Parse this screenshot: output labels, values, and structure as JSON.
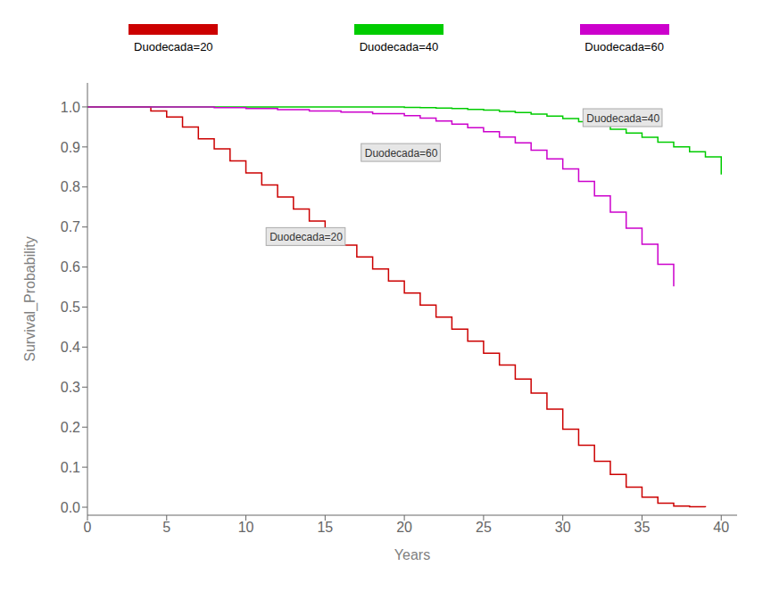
{
  "chart_data": {
    "type": "step",
    "xlabel": "Years",
    "ylabel": "Survival_Probability",
    "xlim": [
      0,
      41
    ],
    "ylim": [
      -0.02,
      1.06
    ],
    "xticks": [
      0,
      5,
      10,
      15,
      20,
      25,
      30,
      35,
      40
    ],
    "yticks": [
      {
        "value": 0.0,
        "label": "0.0"
      },
      0.1,
      0.2,
      0.3,
      0.4,
      0.5,
      0.6,
      0.7,
      0.8,
      0.9,
      {
        "value": 1.0,
        "label": "1.0"
      }
    ],
    "grid": false,
    "legend": "top",
    "series": [
      {
        "name": "Duodecada=20",
        "color": "#cc0000",
        "x": [
          0,
          4,
          5,
          6,
          7,
          8,
          9,
          10,
          11,
          12,
          13,
          14,
          15,
          16,
          17,
          18,
          19,
          20,
          21,
          22,
          23,
          24,
          25,
          26,
          27,
          28,
          29,
          30,
          31,
          32,
          33,
          34,
          35,
          36,
          37,
          38,
          39
        ],
        "values": [
          1.0,
          0.99,
          0.975,
          0.95,
          0.92,
          0.895,
          0.865,
          0.835,
          0.805,
          0.775,
          0.745,
          0.715,
          0.685,
          0.655,
          0.625,
          0.595,
          0.565,
          0.535,
          0.505,
          0.475,
          0.445,
          0.415,
          0.385,
          0.355,
          0.32,
          0.285,
          0.245,
          0.195,
          0.155,
          0.115,
          0.082,
          0.05,
          0.025,
          0.01,
          0.003,
          0.001,
          0.0
        ]
      },
      {
        "name": "Duodecada=40",
        "color": "#00cc00",
        "x": [
          0,
          18,
          20,
          21,
          22,
          23,
          24,
          25,
          26,
          27,
          28,
          29,
          30,
          31,
          32,
          33,
          34,
          35,
          36,
          37,
          38,
          39,
          40
        ],
        "values": [
          1.0,
          1.0,
          0.999,
          0.998,
          0.997,
          0.996,
          0.994,
          0.992,
          0.989,
          0.986,
          0.982,
          0.977,
          0.971,
          0.963,
          0.954,
          0.944,
          0.935,
          0.924,
          0.912,
          0.9,
          0.888,
          0.875,
          0.831
        ]
      },
      {
        "name": "Duodecada=60",
        "color": "#cc00cc",
        "x": [
          0,
          5,
          8,
          10,
          12,
          14,
          16,
          18,
          20,
          21,
          22,
          23,
          24,
          25,
          26,
          27,
          28,
          29,
          30,
          31,
          32,
          33,
          34,
          35,
          36,
          37
        ],
        "values": [
          1.0,
          1.0,
          0.998,
          0.996,
          0.993,
          0.99,
          0.987,
          0.983,
          0.978,
          0.972,
          0.965,
          0.957,
          0.948,
          0.938,
          0.925,
          0.91,
          0.892,
          0.87,
          0.845,
          0.814,
          0.778,
          0.737,
          0.697,
          0.657,
          0.607,
          0.552
        ]
      }
    ],
    "annotations": [
      {
        "text": "Duodecada=20",
        "x": 11.5,
        "y": 0.665
      },
      {
        "text": "Duodecada=40",
        "x": 31.5,
        "y": 0.962
      },
      {
        "text": "Duodecada=60",
        "x": 17.5,
        "y": 0.875
      }
    ]
  }
}
